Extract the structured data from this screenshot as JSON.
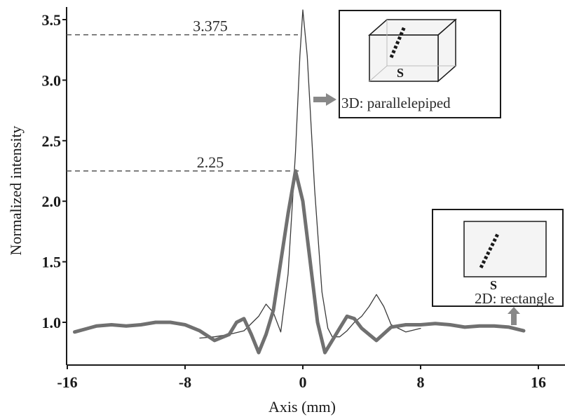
{
  "chart_data": {
    "type": "line",
    "xlabel": "Axis (mm)",
    "ylabel": "Normalized intensity",
    "xlim": [
      -16,
      16
    ],
    "ylim": [
      0.65,
      3.6
    ],
    "x_ticks": [
      "-16",
      "-8",
      "0",
      "8",
      "16"
    ],
    "y_ticks": [
      "1.0",
      "1.5",
      "2.0",
      "2.5",
      "3.0",
      "3.5"
    ],
    "grid": false,
    "series": [
      {
        "style": "thin",
        "color": "#3a3a3a",
        "x": [
          -7,
          -6,
          -5,
          -4,
          -3,
          -2.5,
          -2,
          -1.5,
          -1,
          -0.5,
          -0.2,
          0,
          0.3,
          0.8,
          1.3,
          1.7,
          2,
          2.5,
          3,
          3.5,
          4,
          4.5,
          5,
          5.5,
          6,
          7,
          8
        ],
        "y": [
          0.87,
          0.88,
          0.9,
          0.93,
          1.05,
          1.15,
          1.08,
          0.92,
          1.4,
          2.4,
          3.2,
          3.58,
          3.2,
          2.1,
          1.25,
          0.95,
          0.88,
          0.88,
          0.93,
          1.0,
          1.05,
          1.13,
          1.23,
          1.13,
          0.98,
          0.92,
          0.95
        ]
      },
      {
        "style": "thick",
        "color": "#707070",
        "x": [
          -15.5,
          -14,
          -13,
          -12,
          -11,
          -10,
          -9,
          -8,
          -7,
          -6,
          -5,
          -4.5,
          -4,
          -3.5,
          -3,
          -2.5,
          -2,
          -1.5,
          -1,
          -0.5,
          0,
          0.5,
          1,
          1.5,
          2,
          2.5,
          3,
          3.5,
          4,
          4.5,
          5,
          6,
          7,
          8,
          9,
          10,
          11,
          12,
          13,
          14,
          15
        ],
        "y": [
          0.92,
          0.97,
          0.98,
          0.97,
          0.98,
          1.0,
          1.0,
          0.98,
          0.93,
          0.85,
          0.9,
          1.0,
          1.03,
          0.9,
          0.75,
          0.9,
          1.1,
          1.5,
          1.9,
          2.25,
          2.0,
          1.5,
          1.0,
          0.75,
          0.85,
          0.95,
          1.05,
          1.03,
          0.95,
          0.9,
          0.85,
          0.96,
          0.98,
          0.98,
          0.99,
          0.98,
          0.96,
          0.97,
          0.97,
          0.96,
          0.93
        ]
      }
    ],
    "annotations": [
      {
        "text": "3.375",
        "y": 3.375
      },
      {
        "text": "2.25",
        "y": 2.25
      }
    ],
    "insets": [
      {
        "label": "3D: parallelepiped",
        "marker": "S"
      },
      {
        "label": "2D: rectangle",
        "marker": "S"
      }
    ]
  }
}
